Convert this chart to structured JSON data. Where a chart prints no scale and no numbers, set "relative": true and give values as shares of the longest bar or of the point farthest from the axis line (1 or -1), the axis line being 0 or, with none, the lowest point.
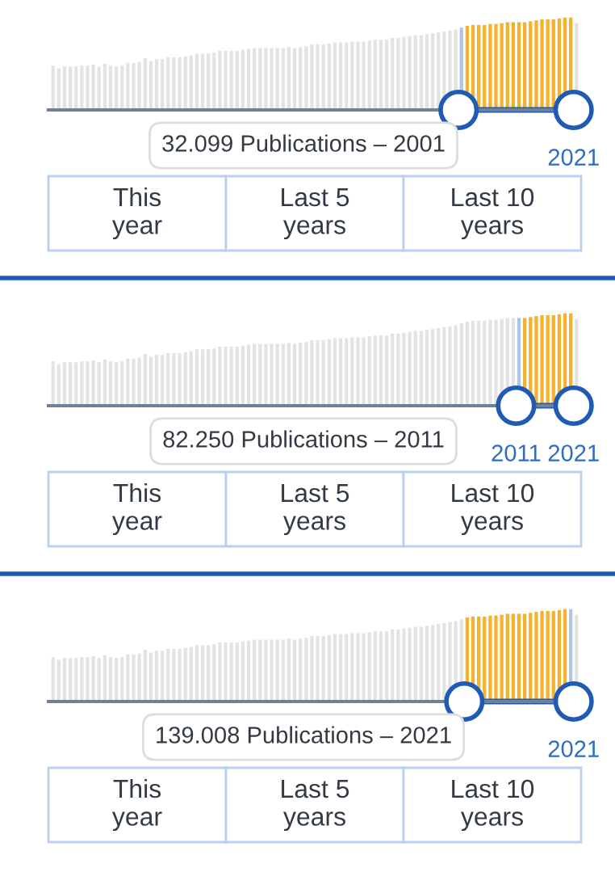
{
  "chart_data": [
    {
      "type": "bar",
      "relative": true,
      "categories": [
        null,
        null,
        null,
        null,
        null,
        null,
        null,
        null,
        null,
        null,
        null,
        null,
        null,
        null,
        null,
        null,
        null,
        null,
        null,
        null,
        null,
        null,
        null,
        null,
        null,
        null,
        null,
        null,
        null,
        null,
        null,
        null,
        null,
        null,
        null,
        null,
        null,
        null,
        null,
        null,
        null,
        null,
        null,
        null,
        null,
        null,
        null,
        null,
        null,
        null,
        null,
        null,
        null,
        null,
        null,
        null,
        null,
        null,
        null,
        null,
        null,
        null,
        null,
        null,
        null,
        null,
        null,
        null,
        null,
        null,
        null,
        null,
        null,
        null,
        null,
        null,
        null,
        null,
        null,
        null,
        null,
        null,
        null,
        null,
        null,
        null,
        null,
        null,
        null,
        null,
        null,
        null
      ],
      "values": [
        0.48,
        0.45,
        0.47,
        0.47,
        0.47,
        0.48,
        0.48,
        0.49,
        0.47,
        0.5,
        0.48,
        0.47,
        0.48,
        0.51,
        0.51,
        0.52,
        0.56,
        0.53,
        0.55,
        0.55,
        0.57,
        0.57,
        0.57,
        0.58,
        0.59,
        0.61,
        0.61,
        0.61,
        0.62,
        0.64,
        0.64,
        0.64,
        0.64,
        0.65,
        0.66,
        0.67,
        0.67,
        0.67,
        0.67,
        0.67,
        0.67,
        0.68,
        0.67,
        0.68,
        0.69,
        0.71,
        0.71,
        0.71,
        0.72,
        0.73,
        0.73,
        0.73,
        0.74,
        0.74,
        0.74,
        0.75,
        0.76,
        0.76,
        0.76,
        0.78,
        0.78,
        0.79,
        0.8,
        0.81,
        0.81,
        0.82,
        0.83,
        0.84,
        0.85,
        0.86,
        0.87,
        0.89,
        0.91,
        0.92,
        0.92,
        0.92,
        0.93,
        0.93,
        0.94,
        0.95,
        0.95,
        0.95,
        0.95,
        0.96,
        0.97,
        0.98,
        0.98,
        0.98,
        0.99,
        1.0,
        1.0,
        0.94
      ],
      "colors": [
        "#e3e3e3",
        "#e3e3e3",
        "#e3e3e3",
        "#e3e3e3",
        "#e3e3e3",
        "#e3e3e3",
        "#e3e3e3",
        "#e3e3e3",
        "#e3e3e3",
        "#e3e3e3",
        "#e3e3e3",
        "#e3e3e3",
        "#e3e3e3",
        "#e3e3e3",
        "#e3e3e3",
        "#e3e3e3",
        "#e3e3e3",
        "#e3e3e3",
        "#e3e3e3",
        "#e3e3e3",
        "#e3e3e3",
        "#e3e3e3",
        "#e3e3e3",
        "#e3e3e3",
        "#e3e3e3",
        "#e3e3e3",
        "#e3e3e3",
        "#e3e3e3",
        "#e3e3e3",
        "#e3e3e3",
        "#e3e3e3",
        "#e3e3e3",
        "#e3e3e3",
        "#e3e3e3",
        "#e3e3e3",
        "#e3e3e3",
        "#e3e3e3",
        "#e3e3e3",
        "#e3e3e3",
        "#e3e3e3",
        "#e3e3e3",
        "#e3e3e3",
        "#e3e3e3",
        "#e3e3e3",
        "#e3e3e3",
        "#e3e3e3",
        "#e3e3e3",
        "#e3e3e3",
        "#e3e3e3",
        "#e3e3e3",
        "#e3e3e3",
        "#e3e3e3",
        "#e3e3e3",
        "#e3e3e3",
        "#e3e3e3",
        "#e3e3e3",
        "#e3e3e3",
        "#e3e3e3",
        "#e3e3e3",
        "#e3e3e3",
        "#e3e3e3",
        "#e3e3e3",
        "#e3e3e3",
        "#e3e3e3",
        "#e3e3e3",
        "#e3e3e3",
        "#e3e3e3",
        "#e3e3e3",
        "#e3e3e3",
        "#e3e3e3",
        "#e3e3e3",
        "#aac4ec",
        "#f5b22c",
        "#f5b22c",
        "#f5b22c",
        "#f5b22c",
        "#f5b22c",
        "#f5b22c",
        "#f5b22c",
        "#f5b22c",
        "#f5b22c",
        "#f5b22c",
        "#f5b22c",
        "#f5b22c",
        "#f5b22c",
        "#f5b22c",
        "#f5b22c",
        "#f5b22c",
        "#f5b22c",
        "#f5b22c",
        "#f5b22c",
        "#e3e3e3"
      ],
      "annotations": [
        "32.099 Publications – 2001",
        "2021",
        "This year",
        "Last 5 years",
        "Last 10 years"
      ]
    },
    {
      "type": "bar",
      "relative": true,
      "categories": [
        null,
        null,
        null,
        null,
        null,
        null,
        null,
        null,
        null,
        null,
        null,
        null,
        null,
        null,
        null,
        null,
        null,
        null,
        null,
        null,
        null,
        null,
        null,
        null,
        null,
        null,
        null,
        null,
        null,
        null,
        null,
        null,
        null,
        null,
        null,
        null,
        null,
        null,
        null,
        null,
        null,
        null,
        null,
        null,
        null,
        null,
        null,
        null,
        null,
        null,
        null,
        null,
        null,
        null,
        null,
        null,
        null,
        null,
        null,
        null,
        null,
        null,
        null,
        null,
        null,
        null,
        null,
        null,
        null,
        null,
        null,
        null,
        null,
        null,
        null,
        null,
        null,
        null,
        null,
        null,
        null,
        null,
        null,
        null,
        null,
        null,
        null,
        null,
        null,
        null,
        null,
        null
      ],
      "values": [
        0.48,
        0.45,
        0.47,
        0.47,
        0.47,
        0.48,
        0.48,
        0.49,
        0.47,
        0.5,
        0.48,
        0.47,
        0.48,
        0.51,
        0.51,
        0.52,
        0.56,
        0.53,
        0.55,
        0.55,
        0.57,
        0.57,
        0.57,
        0.58,
        0.59,
        0.61,
        0.61,
        0.61,
        0.62,
        0.64,
        0.64,
        0.64,
        0.64,
        0.65,
        0.66,
        0.67,
        0.67,
        0.67,
        0.67,
        0.67,
        0.67,
        0.68,
        0.67,
        0.68,
        0.69,
        0.71,
        0.71,
        0.71,
        0.72,
        0.73,
        0.73,
        0.73,
        0.74,
        0.74,
        0.74,
        0.75,
        0.76,
        0.76,
        0.76,
        0.78,
        0.78,
        0.79,
        0.8,
        0.81,
        0.81,
        0.82,
        0.83,
        0.84,
        0.85,
        0.86,
        0.87,
        0.89,
        0.91,
        0.92,
        0.92,
        0.92,
        0.93,
        0.93,
        0.94,
        0.95,
        0.95,
        0.95,
        0.95,
        0.96,
        0.97,
        0.98,
        0.98,
        0.98,
        0.99,
        1.0,
        1.0,
        0.94
      ],
      "colors": [
        "#e3e3e3",
        "#e3e3e3",
        "#e3e3e3",
        "#e3e3e3",
        "#e3e3e3",
        "#e3e3e3",
        "#e3e3e3",
        "#e3e3e3",
        "#e3e3e3",
        "#e3e3e3",
        "#e3e3e3",
        "#e3e3e3",
        "#e3e3e3",
        "#e3e3e3",
        "#e3e3e3",
        "#e3e3e3",
        "#e3e3e3",
        "#e3e3e3",
        "#e3e3e3",
        "#e3e3e3",
        "#e3e3e3",
        "#e3e3e3",
        "#e3e3e3",
        "#e3e3e3",
        "#e3e3e3",
        "#e3e3e3",
        "#e3e3e3",
        "#e3e3e3",
        "#e3e3e3",
        "#e3e3e3",
        "#e3e3e3",
        "#e3e3e3",
        "#e3e3e3",
        "#e3e3e3",
        "#e3e3e3",
        "#e3e3e3",
        "#e3e3e3",
        "#e3e3e3",
        "#e3e3e3",
        "#e3e3e3",
        "#e3e3e3",
        "#e3e3e3",
        "#e3e3e3",
        "#e3e3e3",
        "#e3e3e3",
        "#e3e3e3",
        "#e3e3e3",
        "#e3e3e3",
        "#e3e3e3",
        "#e3e3e3",
        "#e3e3e3",
        "#e3e3e3",
        "#e3e3e3",
        "#e3e3e3",
        "#e3e3e3",
        "#e3e3e3",
        "#e3e3e3",
        "#e3e3e3",
        "#e3e3e3",
        "#e3e3e3",
        "#e3e3e3",
        "#e3e3e3",
        "#e3e3e3",
        "#e3e3e3",
        "#e3e3e3",
        "#e3e3e3",
        "#e3e3e3",
        "#e3e3e3",
        "#e3e3e3",
        "#e3e3e3",
        "#e3e3e3",
        "#e3e3e3",
        "#e3e3e3",
        "#e3e3e3",
        "#e3e3e3",
        "#e3e3e3",
        "#e3e3e3",
        "#e3e3e3",
        "#e3e3e3",
        "#e3e3e3",
        "#e3e3e3",
        "#aac4ec",
        "#f5b22c",
        "#f5b22c",
        "#f5b22c",
        "#f5b22c",
        "#f5b22c",
        "#f5b22c",
        "#f5b22c",
        "#f5b22c",
        "#f5b22c",
        "#e3e3e3"
      ],
      "annotations": [
        "82.250 Publications – 2011",
        "2011",
        "2021",
        "This year",
        "Last 5 years",
        "Last 10 years"
      ]
    },
    {
      "type": "bar",
      "relative": true,
      "categories": [
        null,
        null,
        null,
        null,
        null,
        null,
        null,
        null,
        null,
        null,
        null,
        null,
        null,
        null,
        null,
        null,
        null,
        null,
        null,
        null,
        null,
        null,
        null,
        null,
        null,
        null,
        null,
        null,
        null,
        null,
        null,
        null,
        null,
        null,
        null,
        null,
        null,
        null,
        null,
        null,
        null,
        null,
        null,
        null,
        null,
        null,
        null,
        null,
        null,
        null,
        null,
        null,
        null,
        null,
        null,
        null,
        null,
        null,
        null,
        null,
        null,
        null,
        null,
        null,
        null,
        null,
        null,
        null,
        null,
        null,
        null,
        null,
        null,
        null,
        null,
        null,
        null,
        null,
        null,
        null,
        null,
        null,
        null,
        null,
        null,
        null,
        null,
        null,
        null,
        null,
        null,
        null
      ],
      "values": [
        0.48,
        0.45,
        0.47,
        0.47,
        0.47,
        0.48,
        0.48,
        0.49,
        0.47,
        0.5,
        0.48,
        0.47,
        0.48,
        0.51,
        0.51,
        0.52,
        0.56,
        0.53,
        0.55,
        0.55,
        0.57,
        0.57,
        0.57,
        0.58,
        0.59,
        0.61,
        0.61,
        0.61,
        0.62,
        0.64,
        0.64,
        0.64,
        0.64,
        0.65,
        0.66,
        0.67,
        0.67,
        0.67,
        0.67,
        0.67,
        0.67,
        0.68,
        0.67,
        0.68,
        0.69,
        0.71,
        0.71,
        0.71,
        0.72,
        0.73,
        0.73,
        0.73,
        0.74,
        0.74,
        0.74,
        0.75,
        0.76,
        0.76,
        0.76,
        0.78,
        0.78,
        0.79,
        0.8,
        0.81,
        0.81,
        0.82,
        0.83,
        0.84,
        0.85,
        0.86,
        0.87,
        0.89,
        0.91,
        0.92,
        0.92,
        0.92,
        0.93,
        0.93,
        0.94,
        0.95,
        0.95,
        0.95,
        0.95,
        0.96,
        0.97,
        0.98,
        0.98,
        0.98,
        0.99,
        1.0,
        1.0,
        0.94
      ],
      "colors": [
        "#e3e3e3",
        "#e3e3e3",
        "#e3e3e3",
        "#e3e3e3",
        "#e3e3e3",
        "#e3e3e3",
        "#e3e3e3",
        "#e3e3e3",
        "#e3e3e3",
        "#e3e3e3",
        "#e3e3e3",
        "#e3e3e3",
        "#e3e3e3",
        "#e3e3e3",
        "#e3e3e3",
        "#e3e3e3",
        "#e3e3e3",
        "#e3e3e3",
        "#e3e3e3",
        "#e3e3e3",
        "#e3e3e3",
        "#e3e3e3",
        "#e3e3e3",
        "#e3e3e3",
        "#e3e3e3",
        "#e3e3e3",
        "#e3e3e3",
        "#e3e3e3",
        "#e3e3e3",
        "#e3e3e3",
        "#e3e3e3",
        "#e3e3e3",
        "#e3e3e3",
        "#e3e3e3",
        "#e3e3e3",
        "#e3e3e3",
        "#e3e3e3",
        "#e3e3e3",
        "#e3e3e3",
        "#e3e3e3",
        "#e3e3e3",
        "#e3e3e3",
        "#e3e3e3",
        "#e3e3e3",
        "#e3e3e3",
        "#e3e3e3",
        "#e3e3e3",
        "#e3e3e3",
        "#e3e3e3",
        "#e3e3e3",
        "#e3e3e3",
        "#e3e3e3",
        "#e3e3e3",
        "#e3e3e3",
        "#e3e3e3",
        "#e3e3e3",
        "#e3e3e3",
        "#e3e3e3",
        "#e3e3e3",
        "#e3e3e3",
        "#e3e3e3",
        "#e3e3e3",
        "#e3e3e3",
        "#e3e3e3",
        "#e3e3e3",
        "#e3e3e3",
        "#e3e3e3",
        "#e3e3e3",
        "#e3e3e3",
        "#e3e3e3",
        "#e3e3e3",
        "#e3e3e3",
        "#f5b22c",
        "#f5b22c",
        "#f5b22c",
        "#f5b22c",
        "#f5b22c",
        "#f5b22c",
        "#f5b22c",
        "#f5b22c",
        "#f5b22c",
        "#f5b22c",
        "#f5b22c",
        "#f5b22c",
        "#f5b22c",
        "#f5b22c",
        "#f5b22c",
        "#f5b22c",
        "#f5b22c",
        "#f5b22c",
        "#aac4ec",
        "#e3e3e3"
      ],
      "annotations": [
        "139.008 Publications – 2021",
        "2021",
        "This year",
        "Last 5 years",
        "Last 10 years"
      ]
    }
  ]
}
